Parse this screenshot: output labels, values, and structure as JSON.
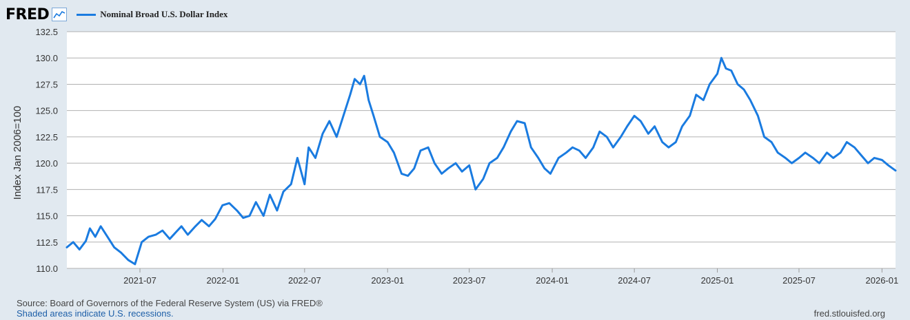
{
  "header": {
    "logo_text": "FRED",
    "legend_label": "Nominal Broad U.S. Dollar Index",
    "series_color": "#1a7be0"
  },
  "footer": {
    "source": "Source: Board of Governors of the Federal Reserve System (US) via FRED®",
    "recessions_note": "Shaded areas indicate U.S. recessions.",
    "site": "fred.stlouisfed.org"
  },
  "chart_data": {
    "type": "line",
    "ylabel": "Index Jan 2006=100",
    "ylim": [
      110.0,
      132.5
    ],
    "yticks": [
      "110.0",
      "112.5",
      "115.0",
      "117.5",
      "120.0",
      "122.5",
      "125.0",
      "127.5",
      "130.0",
      "132.5"
    ],
    "xlim": [
      "2021-01-20",
      "2026-01-31"
    ],
    "xticks": [
      {
        "date": "2021-07-01",
        "label": "2021-07"
      },
      {
        "date": "2022-01-01",
        "label": "2022-01"
      },
      {
        "date": "2022-07-01",
        "label": "2022-07"
      },
      {
        "date": "2023-01-01",
        "label": "2023-01"
      },
      {
        "date": "2023-07-01",
        "label": "2023-07"
      },
      {
        "date": "2024-01-01",
        "label": "2024-01"
      },
      {
        "date": "2024-07-01",
        "label": "2024-07"
      },
      {
        "date": "2025-01-01",
        "label": "2025-01"
      },
      {
        "date": "2025-07-01",
        "label": "2025-07"
      },
      {
        "date": "2026-01-01",
        "label": "2026-01"
      }
    ],
    "grid": "horizontal",
    "series": [
      {
        "name": "Nominal Broad U.S. Dollar Index",
        "points": [
          [
            "2021-01-20",
            112.0
          ],
          [
            "2021-02-03",
            112.5
          ],
          [
            "2021-02-17",
            111.8
          ],
          [
            "2021-03-03",
            112.6
          ],
          [
            "2021-03-12",
            113.8
          ],
          [
            "2021-03-24",
            113.0
          ],
          [
            "2021-04-05",
            114.0
          ],
          [
            "2021-04-20",
            113.0
          ],
          [
            "2021-05-05",
            112.0
          ],
          [
            "2021-05-20",
            111.5
          ],
          [
            "2021-06-05",
            110.8
          ],
          [
            "2021-06-20",
            110.4
          ],
          [
            "2021-07-05",
            112.5
          ],
          [
            "2021-07-20",
            113.0
          ],
          [
            "2021-08-05",
            113.2
          ],
          [
            "2021-08-20",
            113.6
          ],
          [
            "2021-09-05",
            112.8
          ],
          [
            "2021-09-20",
            113.5
          ],
          [
            "2021-10-01",
            114.0
          ],
          [
            "2021-10-15",
            113.2
          ],
          [
            "2021-11-01",
            114.0
          ],
          [
            "2021-11-15",
            114.6
          ],
          [
            "2021-12-01",
            114.0
          ],
          [
            "2021-12-15",
            114.7
          ],
          [
            "2021-12-31",
            116.0
          ],
          [
            "2022-01-15",
            116.2
          ],
          [
            "2022-02-01",
            115.5
          ],
          [
            "2022-02-15",
            114.8
          ],
          [
            "2022-03-01",
            115.0
          ],
          [
            "2022-03-15",
            116.3
          ],
          [
            "2022-04-01",
            115.0
          ],
          [
            "2022-04-15",
            117.0
          ],
          [
            "2022-05-01",
            115.5
          ],
          [
            "2022-05-15",
            117.3
          ],
          [
            "2022-06-01",
            118.0
          ],
          [
            "2022-06-15",
            120.5
          ],
          [
            "2022-07-01",
            118.0
          ],
          [
            "2022-07-10",
            121.5
          ],
          [
            "2022-07-25",
            120.5
          ],
          [
            "2022-08-10",
            122.8
          ],
          [
            "2022-08-25",
            124.0
          ],
          [
            "2022-09-10",
            122.5
          ],
          [
            "2022-09-25",
            124.5
          ],
          [
            "2022-10-10",
            126.5
          ],
          [
            "2022-10-20",
            128.0
          ],
          [
            "2022-11-01",
            127.5
          ],
          [
            "2022-11-10",
            128.3
          ],
          [
            "2022-11-20",
            126.0
          ],
          [
            "2022-12-01",
            124.5
          ],
          [
            "2022-12-15",
            122.5
          ],
          [
            "2023-01-01",
            122.0
          ],
          [
            "2023-01-15",
            121.0
          ],
          [
            "2023-02-01",
            119.0
          ],
          [
            "2023-02-15",
            118.8
          ],
          [
            "2023-03-01",
            119.5
          ],
          [
            "2023-03-15",
            121.2
          ],
          [
            "2023-04-01",
            121.5
          ],
          [
            "2023-04-15",
            120.0
          ],
          [
            "2023-05-01",
            119.0
          ],
          [
            "2023-05-15",
            119.5
          ],
          [
            "2023-06-01",
            120.0
          ],
          [
            "2023-06-15",
            119.2
          ],
          [
            "2023-07-01",
            119.8
          ],
          [
            "2023-07-15",
            117.5
          ],
          [
            "2023-08-01",
            118.5
          ],
          [
            "2023-08-15",
            120.0
          ],
          [
            "2023-09-01",
            120.5
          ],
          [
            "2023-09-15",
            121.5
          ],
          [
            "2023-10-01",
            123.0
          ],
          [
            "2023-10-15",
            124.0
          ],
          [
            "2023-11-01",
            123.8
          ],
          [
            "2023-11-15",
            121.5
          ],
          [
            "2023-12-01",
            120.5
          ],
          [
            "2023-12-15",
            119.5
          ],
          [
            "2023-12-28",
            119.0
          ],
          [
            "2024-01-15",
            120.5
          ],
          [
            "2024-02-01",
            121.0
          ],
          [
            "2024-02-15",
            121.5
          ],
          [
            "2024-03-01",
            121.2
          ],
          [
            "2024-03-15",
            120.5
          ],
          [
            "2024-04-01",
            121.5
          ],
          [
            "2024-04-15",
            123.0
          ],
          [
            "2024-05-01",
            122.5
          ],
          [
            "2024-05-15",
            121.5
          ],
          [
            "2024-06-01",
            122.5
          ],
          [
            "2024-06-15",
            123.5
          ],
          [
            "2024-07-01",
            124.5
          ],
          [
            "2024-07-15",
            124.0
          ],
          [
            "2024-08-01",
            122.8
          ],
          [
            "2024-08-15",
            123.5
          ],
          [
            "2024-09-01",
            122.0
          ],
          [
            "2024-09-15",
            121.5
          ],
          [
            "2024-10-01",
            122.0
          ],
          [
            "2024-10-15",
            123.5
          ],
          [
            "2024-11-01",
            124.5
          ],
          [
            "2024-11-15",
            126.5
          ],
          [
            "2024-12-01",
            126.0
          ],
          [
            "2024-12-15",
            127.5
          ],
          [
            "2025-01-01",
            128.5
          ],
          [
            "2025-01-10",
            130.0
          ],
          [
            "2025-01-20",
            129.0
          ],
          [
            "2025-02-01",
            128.8
          ],
          [
            "2025-02-15",
            127.5
          ],
          [
            "2025-03-01",
            127.0
          ],
          [
            "2025-03-15",
            126.0
          ],
          [
            "2025-04-01",
            124.5
          ],
          [
            "2025-04-15",
            122.5
          ],
          [
            "2025-05-01",
            122.0
          ],
          [
            "2025-05-15",
            121.0
          ],
          [
            "2025-06-01",
            120.5
          ],
          [
            "2025-06-15",
            120.0
          ],
          [
            "2025-07-01",
            120.5
          ],
          [
            "2025-07-15",
            121.0
          ],
          [
            "2025-08-01",
            120.5
          ],
          [
            "2025-08-15",
            120.0
          ],
          [
            "2025-09-01",
            121.0
          ],
          [
            "2025-09-15",
            120.5
          ],
          [
            "2025-10-01",
            121.0
          ],
          [
            "2025-10-15",
            122.0
          ],
          [
            "2025-11-01",
            121.5
          ],
          [
            "2025-11-15",
            120.8
          ],
          [
            "2025-12-01",
            120.0
          ],
          [
            "2025-12-15",
            120.5
          ],
          [
            "2026-01-01",
            120.3
          ],
          [
            "2026-01-15",
            119.8
          ],
          [
            "2026-01-31",
            119.3
          ]
        ]
      }
    ]
  }
}
